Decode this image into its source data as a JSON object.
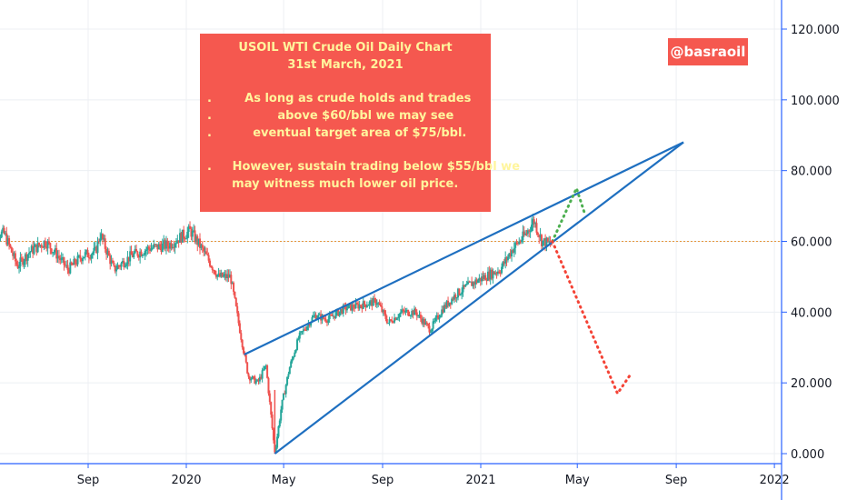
{
  "chart_data": {
    "type": "candlestick",
    "y_axis": {
      "ticks": [
        "120.000",
        "100.000",
        "80.000",
        "60.000",
        "40.000",
        "20.000",
        "0.000"
      ],
      "position": "right",
      "ylim": [
        0,
        125
      ]
    },
    "x_axis": {
      "ticks": [
        "Sep",
        "2020",
        "May",
        "Sep",
        "2021",
        "May",
        "Sep",
        "2022"
      ]
    },
    "price_line": 60,
    "colors": {
      "up": "#26a69a",
      "down": "#ef5350",
      "trend": "#1e6fc0",
      "bull_path": "#4caf50",
      "bear_path": "#f44336",
      "note_bg": "#f5584f",
      "note_text": "#fff59d",
      "grid": "#eceff3"
    },
    "annotation": {
      "lines": [
        "USOIL WTI Crude Oil Daily Chart",
        "31st March, 2021",
        "",
        ".        As long as crude holds and trades",
        ".                above $60/bbl we may see",
        ".          eventual target area of $75/bbl.",
        "",
        ".     However, sustain trading below $55/bbl we",
        "      may witness much lower oil price."
      ]
    },
    "handle": "@basraoil",
    "trendlines": [
      {
        "from": [
          "2020-03-13",
          28
        ],
        "to": [
          "2021-09-10",
          88
        ]
      },
      {
        "from": [
          "2020-04-20",
          0
        ],
        "to": [
          "2021-09-10",
          88
        ]
      }
    ],
    "projection_bull": [
      [
        "2021-03-31",
        60
      ],
      [
        "2021-04-30",
        75
      ],
      [
        "2021-05-10",
        68
      ]
    ],
    "projection_bear": [
      [
        "2021-03-31",
        60
      ],
      [
        "2021-06-20",
        17
      ],
      [
        "2021-07-05",
        22
      ]
    ],
    "series_points": [
      [
        "2019-05-01",
        63
      ],
      [
        "2019-05-20",
        62
      ],
      [
        "2019-06-05",
        53
      ],
      [
        "2019-06-20",
        57
      ],
      [
        "2019-07-10",
        60
      ],
      [
        "2019-07-25",
        56
      ],
      [
        "2019-08-07",
        52
      ],
      [
        "2019-08-25",
        56
      ],
      [
        "2019-09-10",
        57
      ],
      [
        "2019-09-16",
        62
      ],
      [
        "2019-10-03",
        52
      ],
      [
        "2019-10-25",
        56
      ],
      [
        "2019-11-15",
        58
      ],
      [
        "2019-12-10",
        59
      ],
      [
        "2020-01-06",
        63
      ],
      [
        "2020-01-20",
        58
      ],
      [
        "2020-02-10",
        50
      ],
      [
        "2020-02-25",
        50
      ],
      [
        "2020-03-09",
        33
      ],
      [
        "2020-03-18",
        22
      ],
      [
        "2020-03-30",
        20
      ],
      [
        "2020-04-09",
        25
      ],
      [
        "2020-04-20",
        0
      ],
      [
        "2020-04-28",
        13
      ],
      [
        "2020-05-08",
        24
      ],
      [
        "2020-05-20",
        33
      ],
      [
        "2020-06-08",
        39
      ],
      [
        "2020-06-25",
        38
      ],
      [
        "2020-07-15",
        41
      ],
      [
        "2020-08-05",
        42
      ],
      [
        "2020-08-25",
        43
      ],
      [
        "2020-09-08",
        37
      ],
      [
        "2020-09-25",
        40
      ],
      [
        "2020-10-12",
        40
      ],
      [
        "2020-10-30",
        35
      ],
      [
        "2020-11-15",
        41
      ],
      [
        "2020-12-01",
        45
      ],
      [
        "2020-12-20",
        48
      ],
      [
        "2021-01-06",
        50
      ],
      [
        "2021-01-25",
        52
      ],
      [
        "2021-02-10",
        58
      ],
      [
        "2021-02-26",
        62
      ],
      [
        "2021-03-08",
        66
      ],
      [
        "2021-03-18",
        60
      ],
      [
        "2021-03-31",
        59
      ]
    ]
  }
}
